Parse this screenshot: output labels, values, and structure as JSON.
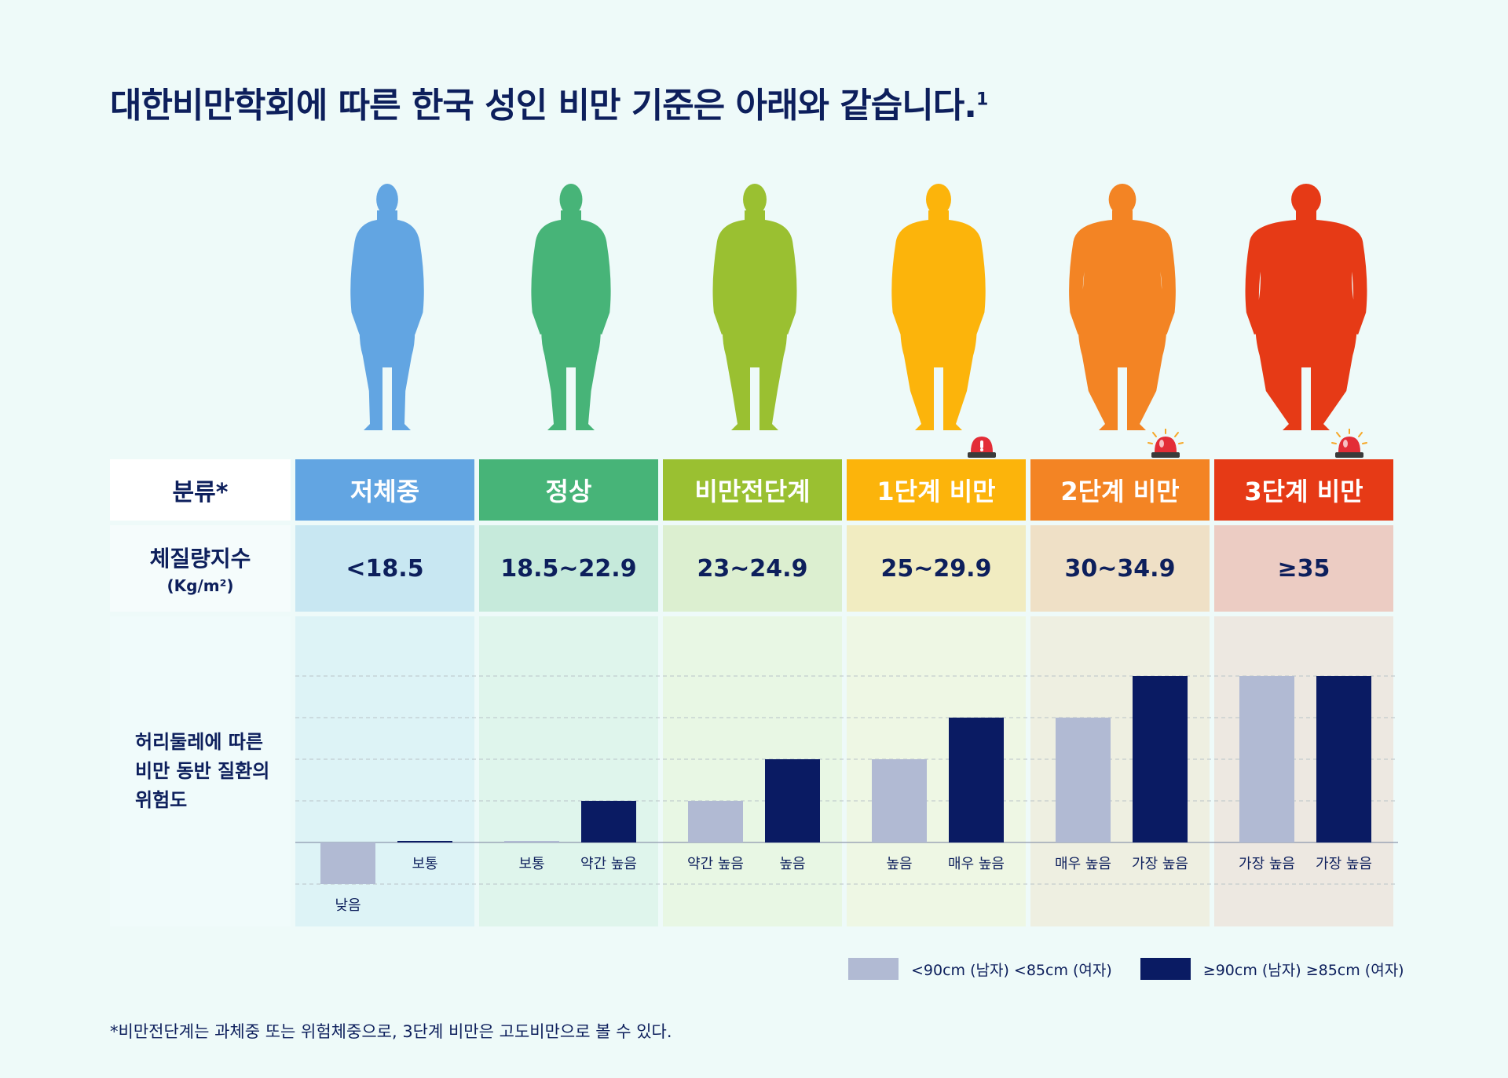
{
  "title": "대한비만학회에 따른 한국 성인 비만 기준은 아래와 같습니다.",
  "title_sup": "1",
  "row_labels": {
    "category": "분류*",
    "bmi_line1": "체질량지수",
    "bmi_line2": "(Kg/m²)",
    "risk": "허리둘레에 따른\n비만 동반 질환의\n위험도"
  },
  "colors": {
    "men_under": "#b1bad3",
    "men_over": "#0a1b63",
    "title": "#0d1f5c",
    "siren_red": "#e32d37"
  },
  "categories": [
    {
      "name": "저체중",
      "bmi": "<18.5",
      "color": "#62a5e2",
      "bmi_bg": "#c8e7f2",
      "risk_bg": "#ddf3f6",
      "body": "slim",
      "siren": false
    },
    {
      "name": "정상",
      "bmi": "18.5~22.9",
      "color": "#47b478",
      "bmi_bg": "#c6eadb",
      "risk_bg": "#dff5ec",
      "body": "normal",
      "siren": false
    },
    {
      "name": "비만전단계",
      "bmi": "23~24.9",
      "color": "#9ac031",
      "bmi_bg": "#dcefd0",
      "risk_bg": "#e8f7e4",
      "body": "over",
      "siren": false
    },
    {
      "name": "1단계 비만",
      "bmi": "25~29.9",
      "color": "#fcb40b",
      "bmi_bg": "#f1ecc1",
      "risk_bg": "#eef7e4",
      "body": "obese1",
      "siren": true,
      "siren_rays": false
    },
    {
      "name": "2단계 비만",
      "bmi": "30~34.9",
      "color": "#f38424",
      "bmi_bg": "#efe0c6",
      "risk_bg": "#eeefe1",
      "body": "obese2",
      "siren": true,
      "siren_rays": true
    },
    {
      "name": "3단계 비만",
      "bmi": "≥35",
      "color": "#e63a16",
      "bmi_bg": "#ecccc3",
      "risk_bg": "#ede8e1",
      "body": "obese3",
      "siren": true,
      "siren_rays": true
    }
  ],
  "chart_data": {
    "type": "bar",
    "title": "허리둘레에 따른 비만 동반 질환의 위험도",
    "categories": [
      "저체중",
      "정상",
      "비만전단계",
      "1단계 비만",
      "2단계 비만",
      "3단계 비만"
    ],
    "ylim": [
      -1,
      4
    ],
    "grid": true,
    "legend_position": "bottom-right",
    "series": [
      {
        "name": "<90cm (남자)  <85cm (여자)",
        "color": "#b1bad3",
        "values": [
          -1,
          0,
          1,
          2,
          3,
          4
        ],
        "labels": [
          "낮음",
          "보통",
          "약간 높음",
          "높음",
          "매우 높음",
          "가장 높음"
        ]
      },
      {
        "name": "≥90cm (남자)  ≥85cm (여자)",
        "color": "#0a1b63",
        "values": [
          0,
          1,
          2,
          3,
          4,
          4
        ],
        "labels": [
          "보통",
          "약간 높음",
          "높음",
          "매우 높음",
          "가장 높음",
          "가장 높음"
        ]
      }
    ]
  },
  "legend": {
    "under": "<90cm (남자)  <85cm (여자)",
    "over": "≥90cm (남자)  ≥85cm (여자)"
  },
  "footnote": "*비만전단계는 과체중 또는 위험체중으로, 3단계 비만은 고도비만으로 볼 수 있다."
}
